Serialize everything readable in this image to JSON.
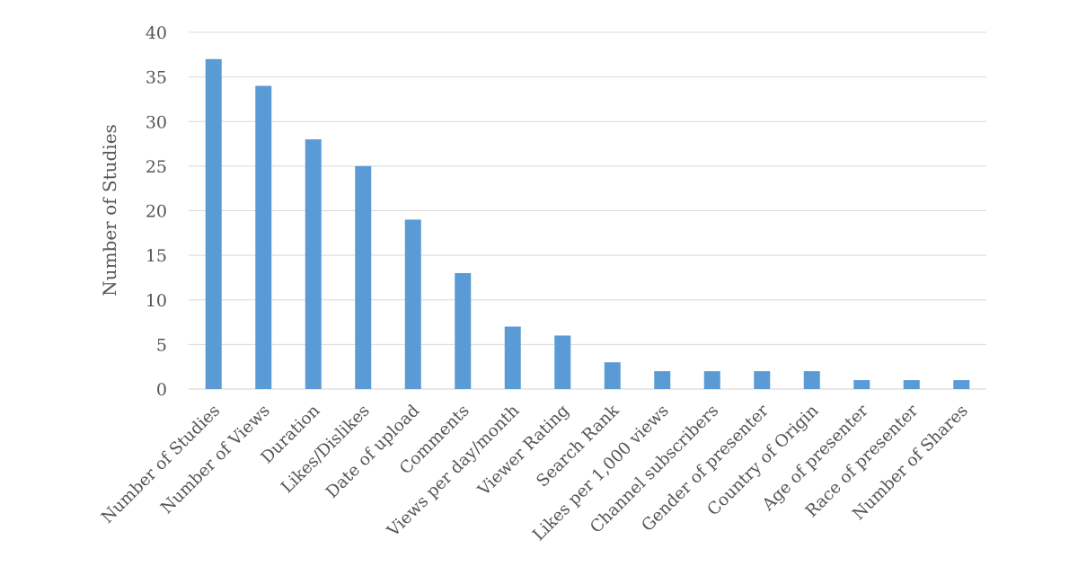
{
  "chart_data": {
    "type": "bar",
    "title": "",
    "xlabel": "",
    "ylabel": "Number of Studies",
    "ylim": [
      0,
      40
    ],
    "yticks": [
      0,
      5,
      10,
      15,
      20,
      25,
      30,
      35,
      40
    ],
    "grid": true,
    "legend": "none",
    "bar_color": "#5b9bd5",
    "categories": [
      "Number of Studies",
      "Number of Views",
      "Duration",
      "Likes/Dislikes",
      "Date of upload",
      "Comments",
      "Views per day/month",
      "Viewer Rating",
      "Search Rank",
      "Likes per 1,000 views",
      "Channel subscribers",
      "Gender of presenter",
      "Country of Origin",
      "Age of presenter",
      "Race of presenter",
      "Number of Shares"
    ],
    "values": [
      37,
      34,
      28,
      25,
      19,
      13,
      7,
      6,
      3,
      2,
      2,
      2,
      2,
      1,
      1,
      1
    ]
  }
}
